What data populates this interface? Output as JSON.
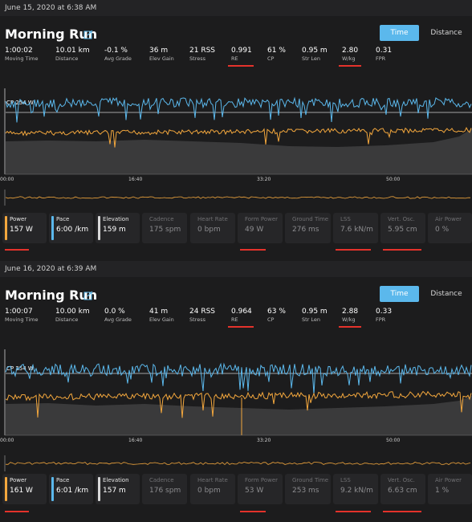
{
  "colors": {
    "power": "#f3a73d",
    "pace": "#5bb8ec",
    "elevation": "#d9d9d9",
    "highlight": "#e4322b",
    "button": "#5bb8ec"
  },
  "runs": [
    {
      "date": "June 15, 2020 at 6:38 AM",
      "title": "Morning Run",
      "time_button": "Time",
      "distance_button": "Distance",
      "stats": [
        {
          "value": "1:00:02",
          "label": "Moving Time"
        },
        {
          "value": "10.01 km",
          "label": "Distance"
        },
        {
          "value": "-0.1 %",
          "label": "Avg Grade"
        },
        {
          "value": "36 m",
          "label": "Elev Gain"
        },
        {
          "value": "21 RSS",
          "label": "Stress"
        },
        {
          "value": "0.991",
          "label": "RE"
        },
        {
          "value": "61 %",
          "label": "CP"
        },
        {
          "value": "0.95 m",
          "label": "Str Len"
        },
        {
          "value": "2.80",
          "label": "W/kg"
        },
        {
          "value": "0.31",
          "label": "FPR"
        }
      ],
      "cp_label": "CP 254 W",
      "ticks": [
        "00:00",
        "16:40",
        "33:20",
        "50:00"
      ],
      "metrics": [
        {
          "label": "Power",
          "value": "157 W"
        },
        {
          "label": "Pace",
          "value": "6:00 /km"
        },
        {
          "label": "Elevation",
          "value": "159 m"
        },
        {
          "label": "Cadence",
          "value": "175 spm"
        },
        {
          "label": "Heart Rate",
          "value": "0 bpm"
        },
        {
          "label": "Form Power",
          "value": "49 W"
        },
        {
          "label": "Ground Time",
          "value": "276 ms"
        },
        {
          "label": "LSS",
          "value": "7.6 kN/m"
        },
        {
          "label": "Vert. Osc.",
          "value": "5.95 cm"
        },
        {
          "label": "Air Power",
          "value": "0 %"
        }
      ]
    },
    {
      "date": "June 16, 2020 at 6:39 AM",
      "title": "Morning Run",
      "time_button": "Time",
      "distance_button": "Distance",
      "stats": [
        {
          "value": "1:00:07",
          "label": "Moving Time"
        },
        {
          "value": "10.00 km",
          "label": "Distance"
        },
        {
          "value": "0.0 %",
          "label": "Avg Grade"
        },
        {
          "value": "41 m",
          "label": "Elev Gain"
        },
        {
          "value": "24 RSS",
          "label": "Stress"
        },
        {
          "value": "0.964",
          "label": "RE"
        },
        {
          "value": "63 %",
          "label": "CP"
        },
        {
          "value": "0.95 m",
          "label": "Str Len"
        },
        {
          "value": "2.88",
          "label": "W/kg"
        },
        {
          "value": "0.33",
          "label": "FPR"
        }
      ],
      "cp_label": "CP 254 W",
      "ticks": [
        "00:00",
        "16:40",
        "33:20",
        "50:00"
      ],
      "metrics": [
        {
          "label": "Power",
          "value": "161 W"
        },
        {
          "label": "Pace",
          "value": "6:01 /km"
        },
        {
          "label": "Elevation",
          "value": "157 m"
        },
        {
          "label": "Cadence",
          "value": "176 spm"
        },
        {
          "label": "Heart Rate",
          "value": "0 bpm"
        },
        {
          "label": "Form Power",
          "value": "53 W"
        },
        {
          "label": "Ground Time",
          "value": "253 ms"
        },
        {
          "label": "LSS",
          "value": "9.2 kN/m"
        },
        {
          "label": "Vert. Osc.",
          "value": "6.63 cm"
        },
        {
          "label": "Air Power",
          "value": "1 %"
        }
      ]
    }
  ]
}
